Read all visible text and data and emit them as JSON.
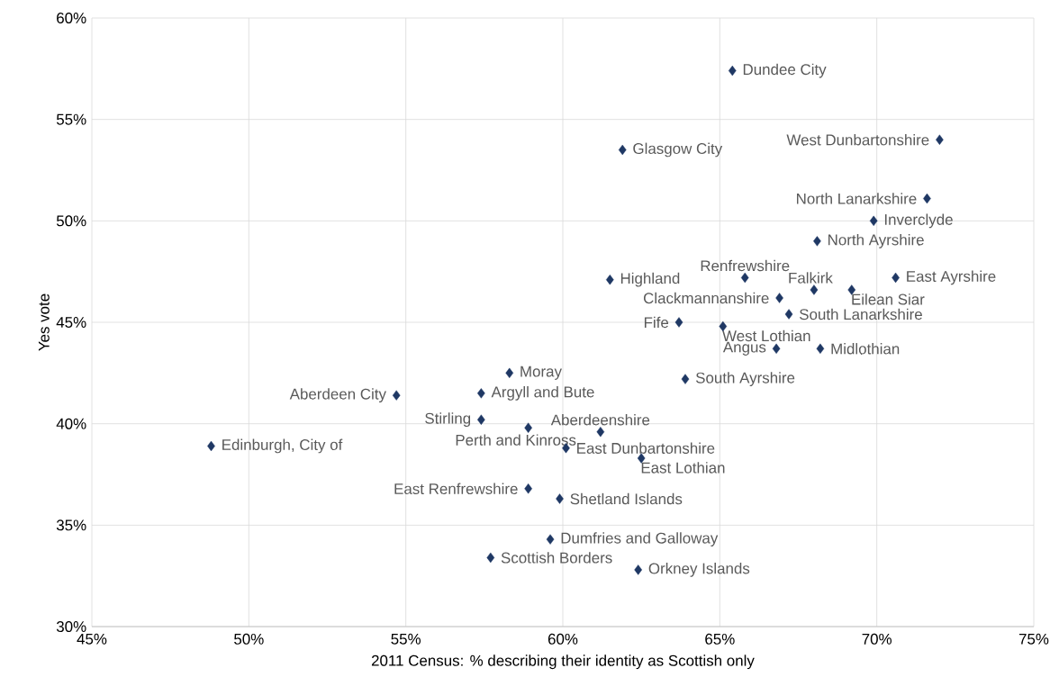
{
  "chart_data": {
    "type": "scatter",
    "xlabel": "2011 Census: % describing their identity as Scottish only",
    "ylabel": "Yes vote",
    "x": [
      65.4,
      61.9,
      72.0,
      71.6,
      69.9,
      68.1,
      65.8,
      61.5,
      70.6,
      68.0,
      69.2,
      66.9,
      67.2,
      63.7,
      65.1,
      66.8,
      68.2,
      58.3,
      63.9,
      54.7,
      57.4,
      57.4,
      58.9,
      61.2,
      48.8,
      60.1,
      62.5,
      58.9,
      59.9,
      59.6,
      57.7,
      62.4
    ],
    "values": [
      57.4,
      53.5,
      54.0,
      51.1,
      50.0,
      49.0,
      47.2,
      47.1,
      47.2,
      46.6,
      46.6,
      46.2,
      45.4,
      45.0,
      44.8,
      43.7,
      43.7,
      42.5,
      42.2,
      41.4,
      41.5,
      40.2,
      39.8,
      39.6,
      38.9,
      38.8,
      38.3,
      36.8,
      36.3,
      34.3,
      33.4,
      32.8
    ],
    "color": "#1f3864",
    "marker": "diamond",
    "grid": true,
    "xlim": [
      45,
      75
    ],
    "ylim": [
      30,
      60
    ],
    "xticks": [
      {
        "value": 45,
        "label": "45%"
      },
      {
        "value": 50,
        "label": "50%"
      },
      {
        "value": 55,
        "label": "55%"
      },
      {
        "value": 60,
        "label": "60%"
      },
      {
        "value": 65,
        "label": "65%"
      },
      {
        "value": 70,
        "label": "70%"
      },
      {
        "value": 75,
        "label": "75%"
      }
    ],
    "yticks": [
      {
        "value": 30,
        "label": "30%"
      },
      {
        "value": 35,
        "label": "35%"
      },
      {
        "value": 40,
        "label": "40%"
      },
      {
        "value": 45,
        "label": "45%"
      },
      {
        "value": 50,
        "label": "50%"
      },
      {
        "value": 55,
        "label": "55%"
      },
      {
        "value": 60,
        "label": "60%"
      }
    ],
    "annotations": [
      {
        "text": "Dundee City",
        "x": 65.4,
        "y": 57.4
      },
      {
        "text": "Glasgow City",
        "x": 61.9,
        "y": 53.5
      },
      {
        "text": "West Dunbartonshire",
        "x": 72.0,
        "y": 54.0
      },
      {
        "text": "North Lanarkshire",
        "x": 71.6,
        "y": 51.1
      },
      {
        "text": "Inverclyde",
        "x": 69.9,
        "y": 50.0
      },
      {
        "text": "North Ayrshire",
        "x": 68.1,
        "y": 49.0
      },
      {
        "text": "Renfrewshire",
        "x": 65.8,
        "y": 47.2
      },
      {
        "text": "Highland",
        "x": 61.5,
        "y": 47.1
      },
      {
        "text": "East Ayrshire",
        "x": 70.6,
        "y": 47.2
      },
      {
        "text": "Falkirk",
        "x": 68.0,
        "y": 46.6
      },
      {
        "text": "Eilean Siar",
        "x": 69.2,
        "y": 46.6
      },
      {
        "text": "Clackmannanshire",
        "x": 66.9,
        "y": 46.2
      },
      {
        "text": "South Lanarkshire",
        "x": 67.2,
        "y": 45.4
      },
      {
        "text": "Fife",
        "x": 63.7,
        "y": 45.0
      },
      {
        "text": "West Lothian",
        "x": 65.1,
        "y": 44.8
      },
      {
        "text": "Angus",
        "x": 66.8,
        "y": 43.7
      },
      {
        "text": "Midlothian",
        "x": 68.2,
        "y": 43.7
      },
      {
        "text": "Moray",
        "x": 58.3,
        "y": 42.5
      },
      {
        "text": "South Ayrshire",
        "x": 63.9,
        "y": 42.2
      },
      {
        "text": "Aberdeen City",
        "x": 54.7,
        "y": 41.4
      },
      {
        "text": "Argyll and Bute",
        "x": 57.4,
        "y": 41.5
      },
      {
        "text": "Stirling",
        "x": 57.4,
        "y": 40.2
      },
      {
        "text": "Perth and Kinross",
        "x": 58.9,
        "y": 39.8
      },
      {
        "text": "Aberdeenshire",
        "x": 61.2,
        "y": 39.6
      },
      {
        "text": "Edinburgh, City of",
        "x": 48.8,
        "y": 38.9
      },
      {
        "text": "East Dunbartonshire",
        "x": 60.1,
        "y": 38.8
      },
      {
        "text": "East Lothian",
        "x": 62.5,
        "y": 38.3
      },
      {
        "text": "East Renfrewshire",
        "x": 58.9,
        "y": 36.8
      },
      {
        "text": "Shetland Islands",
        "x": 59.9,
        "y": 36.3
      },
      {
        "text": "Dumfries and Galloway",
        "x": 59.6,
        "y": 34.3
      },
      {
        "text": "Scottish Borders",
        "x": 57.7,
        "y": 33.4
      },
      {
        "text": "Orkney Islands",
        "x": 62.4,
        "y": 32.8
      }
    ]
  }
}
